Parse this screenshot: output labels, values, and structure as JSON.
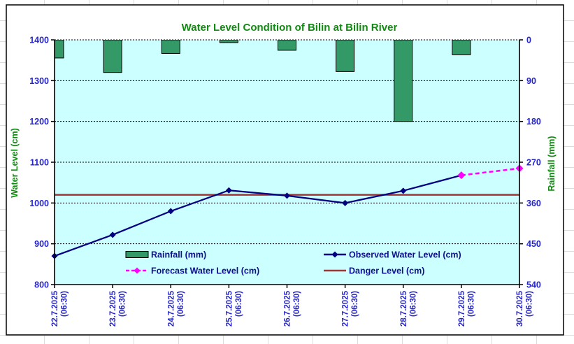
{
  "chart_data": {
    "type": "combo-bar-line",
    "title": "Water Level Condition of Bilin at Bilin River",
    "categories": [
      "22.7.2025",
      "23.7.2025",
      "24.7.2025",
      "25.7.2025",
      "26.7.2025",
      "27.7.2025",
      "28.7.2025",
      "29.7.2025",
      "30.7.2025"
    ],
    "category_sublabel": "(06:30)",
    "series": [
      {
        "name": "Rainfall (mm)",
        "type": "bar",
        "axis": "right",
        "values": [
          40,
          72,
          30,
          6,
          23,
          70,
          180,
          33,
          0
        ]
      },
      {
        "name": "Observed Water Level (cm)",
        "type": "line",
        "axis": "left",
        "values": [
          870,
          922,
          980,
          1031,
          1018,
          1000,
          1030,
          1068,
          null
        ]
      },
      {
        "name": "Forecast Water Level (cm)",
        "type": "line-dashed",
        "axis": "left",
        "values": [
          null,
          null,
          null,
          null,
          null,
          null,
          null,
          1068,
          1085
        ]
      },
      {
        "name": "Danger Level (cm)",
        "type": "hline",
        "axis": "left",
        "value": 1020
      }
    ],
    "left_axis": {
      "title": "Water Level (cm)",
      "min": 800,
      "max": 1400,
      "step": 100,
      "ticks": [
        1400,
        1300,
        1200,
        1100,
        1000,
        900,
        800
      ]
    },
    "right_axis": {
      "title": "Rainfall (mm)",
      "min": 0,
      "max": 540,
      "step": 90,
      "inverted": true,
      "ticks": [
        0,
        90,
        180,
        270,
        360,
        450,
        540
      ]
    },
    "legend_position": "inside-bottom",
    "grid": "dashed-horizontal",
    "plot_background": "#ccffff"
  },
  "colors": {
    "title_green": "#118a11",
    "tick_label_blue": "#2525cd",
    "legend_text_navy": "#10108f",
    "bar_fill": "#339966",
    "bar_stroke": "#000000",
    "observed_line": "#000080",
    "forecast_line": "#ff00ff",
    "danger_line": "#a23535",
    "plot_bg": "#ccffff",
    "grid_line": "#000000",
    "chart_border": "#000000",
    "sheet_line": "#dcdcdc"
  }
}
